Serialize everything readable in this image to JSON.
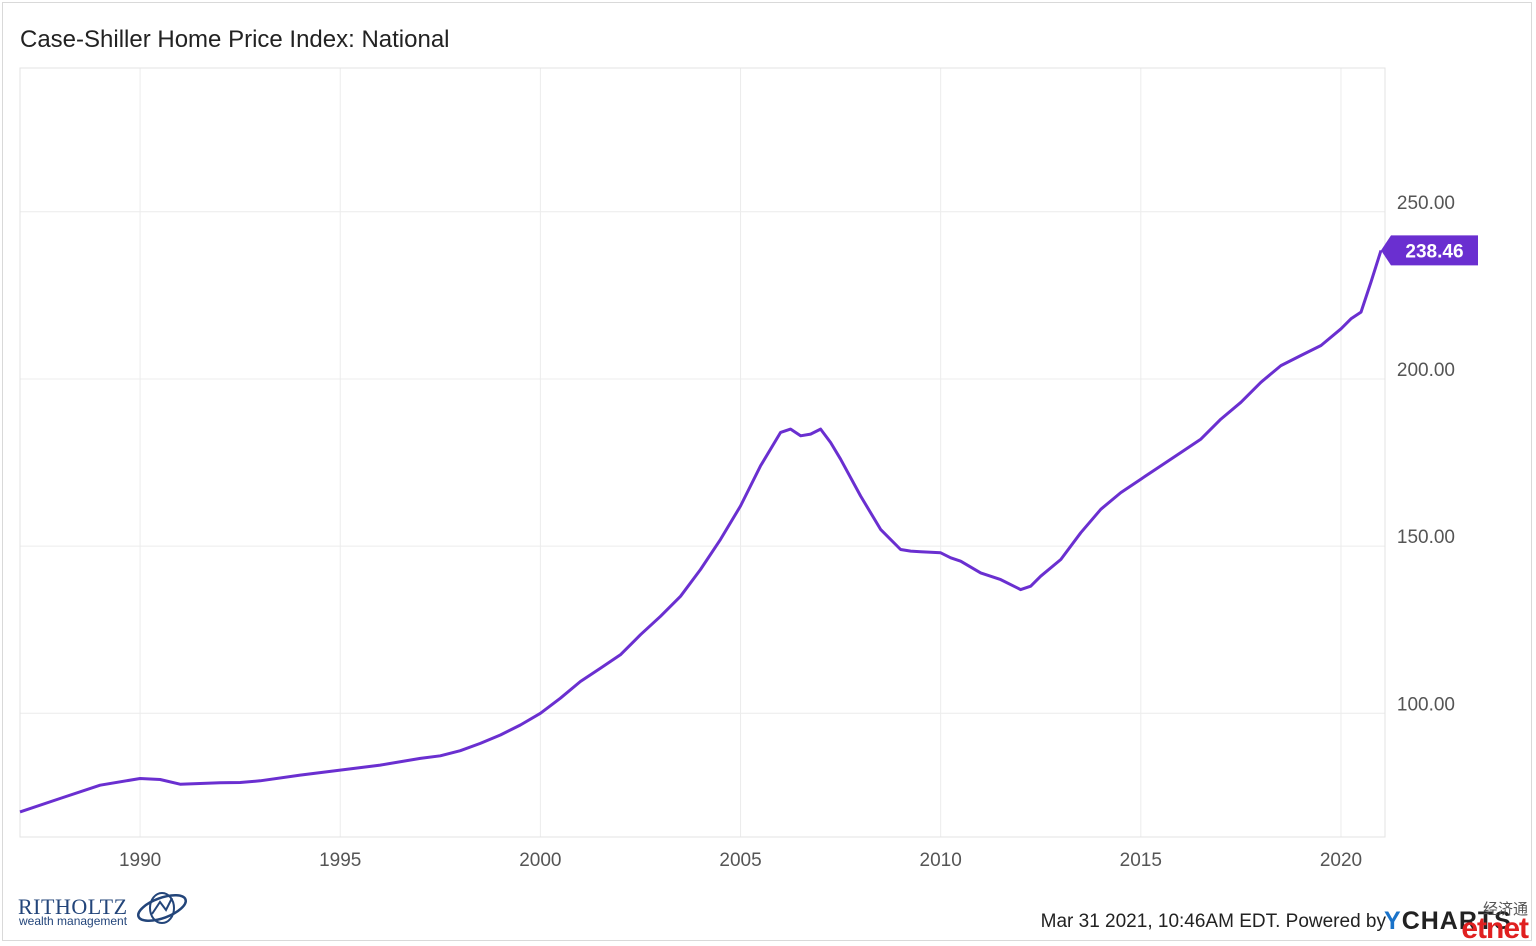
{
  "title": "Case-Shiller Home Price Index: National",
  "chart_data": {
    "type": "line",
    "title": "Case-Shiller Home Price Index: National",
    "xlabel": "",
    "ylabel": "",
    "xlim": [
      1987.0,
      2021.1
    ],
    "ylim": [
      63,
      293
    ],
    "x_ticks": [
      "1990",
      "1995",
      "2000",
      "2005",
      "2010",
      "2015",
      "2020"
    ],
    "y_ticks": [
      "100.00",
      "150.00",
      "200.00",
      "250.00"
    ],
    "grid": true,
    "last_value_label": "238.46",
    "series": [
      {
        "color": "#6a2fd0",
        "x": [
          1987.0,
          1988.0,
          1989.0,
          1990.0,
          1990.5,
          1991.0,
          1991.5,
          1992.0,
          1992.5,
          1993.0,
          1994.0,
          1995.0,
          1996.0,
          1997.0,
          1997.5,
          1998.0,
          1998.5,
          1999.0,
          1999.5,
          2000.0,
          2000.5,
          2001.0,
          2001.5,
          2002.0,
          2002.5,
          2003.0,
          2003.5,
          2004.0,
          2004.5,
          2005.0,
          2005.5,
          2006.0,
          2006.25,
          2006.5,
          2006.75,
          2007.0,
          2007.25,
          2007.5,
          2008.0,
          2008.5,
          2009.0,
          2009.25,
          2009.5,
          2010.0,
          2010.25,
          2010.5,
          2011.0,
          2011.5,
          2012.0,
          2012.25,
          2012.5,
          2013.0,
          2013.5,
          2014.0,
          2014.5,
          2015.0,
          2015.5,
          2016.0,
          2016.5,
          2017.0,
          2017.5,
          2018.0,
          2018.5,
          2019.0,
          2019.5,
          2020.0,
          2020.25,
          2020.5,
          2020.75,
          2021.0
        ],
        "y": [
          70.5,
          74.5,
          78.5,
          80.5,
          80.2,
          78.8,
          79.0,
          79.2,
          79.3,
          79.8,
          81.5,
          83.0,
          84.5,
          86.5,
          87.3,
          88.8,
          91.0,
          93.5,
          96.5,
          100.0,
          104.5,
          109.5,
          113.5,
          117.5,
          123.5,
          129.0,
          135.0,
          143.0,
          152.0,
          162.0,
          174.0,
          184.0,
          185.0,
          183.0,
          183.5,
          185.0,
          181.0,
          176.0,
          165.0,
          155.0,
          149.0,
          148.5,
          148.3,
          148.0,
          146.5,
          145.5,
          142.0,
          140.0,
          137.0,
          138.0,
          141.0,
          146.0,
          154.0,
          161.0,
          166.0,
          170.0,
          174.0,
          178.0,
          182.0,
          188.0,
          193.0,
          199.0,
          204.0,
          207.0,
          210.0,
          215.0,
          218.0,
          220.0,
          229.0,
          238.46
        ]
      }
    ]
  },
  "footer": {
    "brand_name": "RITHOLTZ",
    "brand_sub": "wealth management",
    "credit": "Mar 31 2021, 10:46AM EDT. Powered by",
    "ycharts_y": "Y",
    "ycharts_rest": "CHARTS",
    "watermark_top": "经济通",
    "watermark_bottom": "etnet"
  }
}
